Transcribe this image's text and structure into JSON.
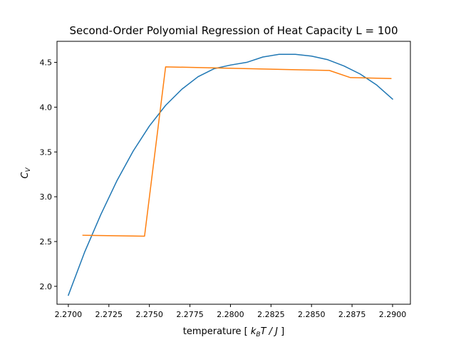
{
  "chart_data": {
    "type": "line",
    "title": "Second-Order Polyomial Regression of Heat Capacity L = 100",
    "xlabel_prefix": "temperature [ ",
    "xlabel_k": "k",
    "xlabel_k_sub": "B",
    "xlabel_rest": "T / J",
    "xlabel_suffix": " ]",
    "ylabel_main": "C",
    "ylabel_sub": "V",
    "xlim": [
      2.2693,
      2.2911
    ],
    "ylim": [
      1.8,
      4.735
    ],
    "xticks": [
      2.27,
      2.2725,
      2.275,
      2.2775,
      2.28,
      2.2825,
      2.285,
      2.2875,
      2.29
    ],
    "xtick_labels": [
      "2.2700",
      "2.2725",
      "2.2750",
      "2.2775",
      "2.2800",
      "2.2825",
      "2.2850",
      "2.2875",
      "2.2900"
    ],
    "yticks": [
      2.0,
      2.5,
      3.0,
      3.5,
      4.0,
      4.5
    ],
    "ytick_labels": [
      "2.0",
      "2.5",
      "3.0",
      "3.5",
      "4.0",
      "4.5"
    ],
    "grid": false,
    "series": [
      {
        "kind": "fit",
        "color": "#1f77b4",
        "x": [
          2.27,
          2.271,
          2.272,
          2.273,
          2.274,
          2.275,
          2.276,
          2.277,
          2.278,
          2.279,
          2.28,
          2.281,
          2.282,
          2.283,
          2.284,
          2.285,
          2.286,
          2.287,
          2.288,
          2.289,
          2.29
        ],
        "values": [
          1.9,
          2.38,
          2.8,
          3.18,
          3.51,
          3.79,
          4.02,
          4.2,
          4.34,
          4.43,
          4.47,
          4.5,
          4.56,
          4.59,
          4.59,
          4.57,
          4.53,
          4.46,
          4.37,
          4.25,
          4.09
        ]
      },
      {
        "kind": "data",
        "color": "#ff7f0e",
        "x": [
          2.2709,
          2.2747,
          2.276,
          2.2861,
          2.2874,
          2.2899
        ],
        "values": [
          2.57,
          2.56,
          4.45,
          4.41,
          4.33,
          4.32
        ]
      }
    ]
  }
}
